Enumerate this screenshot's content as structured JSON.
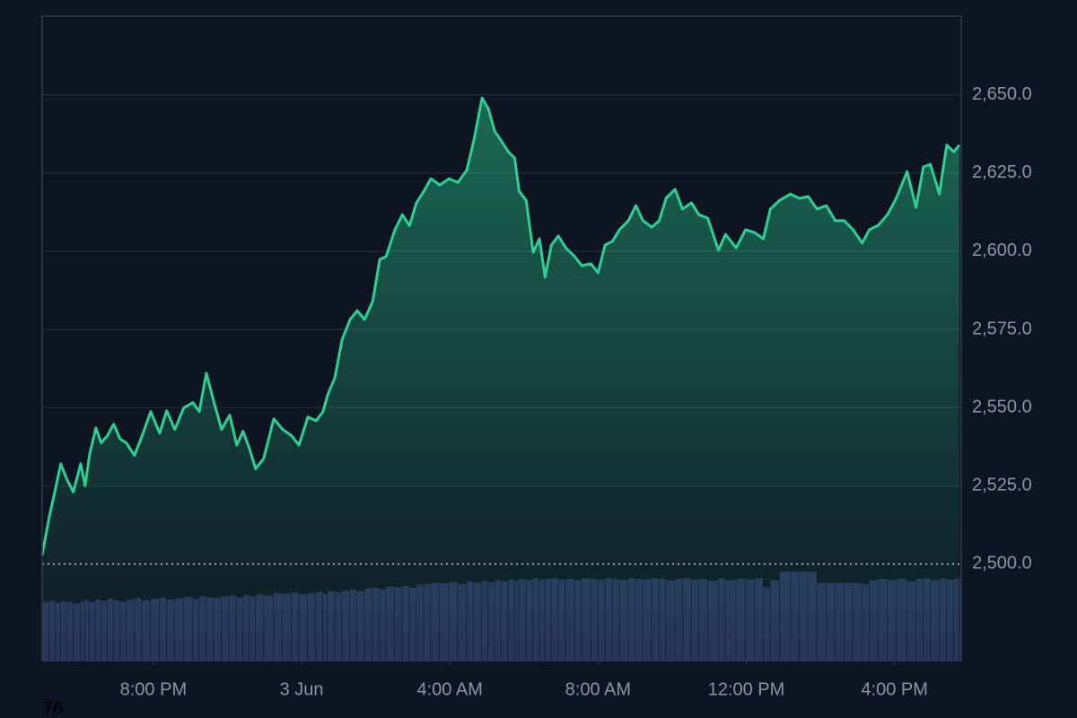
{
  "chart_data": {
    "type": "line",
    "x": [
      -7.0,
      -6.81,
      -6.64,
      -6.5,
      -6.33,
      -6.16,
      -5.96,
      -5.84,
      -5.72,
      -5.55,
      -5.41,
      -5.24,
      -5.07,
      -4.9,
      -4.73,
      -4.51,
      -4.32,
      -4.07,
      -3.83,
      -3.64,
      -3.42,
      -3.18,
      -2.93,
      -2.76,
      -2.57,
      -2.38,
      -2.16,
      -1.94,
      -1.75,
      -1.58,
      -1.41,
      -1.24,
      -1.02,
      -0.75,
      -0.51,
      -0.27,
      -0.07,
      0.17,
      0.39,
      0.58,
      0.7,
      0.9,
      1.09,
      1.31,
      1.5,
      1.7,
      1.92,
      2.11,
      2.28,
      2.52,
      2.72,
      2.91,
      3.1,
      3.3,
      3.49,
      3.73,
      3.98,
      4.22,
      4.46,
      4.65,
      4.87,
      5.04,
      5.21,
      5.38,
      5.58,
      5.75,
      5.87,
      6.06,
      6.25,
      6.42,
      6.57,
      6.74,
      6.93,
      7.13,
      7.37,
      7.56,
      7.81,
      8.0,
      8.19,
      8.39,
      8.58,
      8.82,
      9.02,
      9.21,
      9.45,
      9.65,
      9.84,
      10.08,
      10.28,
      10.52,
      10.72,
      10.96,
      11.25,
      11.44,
      11.73,
      11.98,
      12.22,
      12.46,
      12.65,
      12.9,
      13.19,
      13.43,
      13.67,
      13.91,
      14.16,
      14.4,
      14.64,
      14.88,
      15.13,
      15.32,
      15.56,
      15.81,
      16.05,
      16.34,
      16.58,
      16.78,
      16.97,
      17.21,
      17.41,
      17.6,
      17.75
    ],
    "series": [
      {
        "color": "#2bd093",
        "values": [
          2502.9,
          2515,
          2524,
          2532,
          2527,
          2523,
          2532,
          2525,
          2535,
          2543.5,
          2538.7,
          2541,
          2544.7,
          2540,
          2538.7,
          2534.7,
          2540.4,
          2548.7,
          2541.8,
          2549,
          2543,
          2549.9,
          2551.6,
          2548.7,
          2561,
          2552.4,
          2543,
          2547.6,
          2538,
          2542.4,
          2537,
          2530.4,
          2533.8,
          2546.4,
          2543,
          2541,
          2538,
          2547,
          2545.8,
          2548.7,
          2553.9,
          2559.6,
          2571.6,
          2578.2,
          2581,
          2578.2,
          2584,
          2597.4,
          2598.3,
          2606.9,
          2611.7,
          2608.2,
          2615.5,
          2619.2,
          2623.2,
          2621.2,
          2623.2,
          2622,
          2626,
          2635.5,
          2649,
          2645.6,
          2638.4,
          2635.5,
          2631.8,
          2629.8,
          2619.2,
          2616.3,
          2599.7,
          2604,
          2591.7,
          2602,
          2604.9,
          2601.1,
          2598.3,
          2595.4,
          2596,
          2593.1,
          2602,
          2603.2,
          2606.9,
          2609.8,
          2614.6,
          2609.8,
          2607.7,
          2609.8,
          2617,
          2619.8,
          2613.5,
          2615.5,
          2611.7,
          2610.6,
          2600.3,
          2605.4,
          2601.1,
          2606.9,
          2606,
          2604,
          2613.5,
          2616.3,
          2618.3,
          2616.9,
          2617.5,
          2613.5,
          2614.6,
          2609.8,
          2609.8,
          2606.9,
          2602.6,
          2606.9,
          2608.3,
          2611.7,
          2617,
          2625.5,
          2614,
          2627,
          2627.8,
          2618.3,
          2634,
          2631.8,
          2634
        ]
      },
      {
        "type": "bar",
        "axis": "y2",
        "color": "#283259",
        "values": [
          9.2,
          9.4,
          9.1,
          9.3,
          9.2,
          9.0,
          9.3,
          9.5,
          9.2,
          9.6,
          9.4,
          9.7,
          9.5,
          9.3,
          9.6,
          9.8,
          9.5,
          9.7,
          9.9,
          9.6,
          9.8,
          10.0,
          9.7,
          10.1,
          9.9,
          9.8,
          10.1,
          10.2,
          10.0,
          10.3,
          10.1,
          10.4,
          10.2,
          10.6,
          10.5,
          10.7,
          10.4,
          10.6,
          10.8,
          10.5,
          10.9,
          10.7,
          11.0,
          11.2,
          10.9,
          11.3,
          11.4,
          11.2,
          11.6,
          11.5,
          11.7,
          11.4,
          11.9,
          12.0,
          12.2,
          12.1,
          12.3,
          12.0,
          12.4,
          12.2,
          12.5,
          12.3,
          12.6,
          12.4,
          12.7,
          12.5,
          12.8,
          12.6,
          12.9,
          12.7,
          12.8,
          12.9,
          12.7,
          12.8,
          12.6,
          12.9,
          12.8,
          12.7,
          12.9,
          12.8,
          12.6,
          12.9,
          12.8,
          12.7,
          12.9,
          12.8,
          12.6,
          12.8,
          12.9,
          12.7,
          12.8,
          12.5,
          12.9,
          12.6,
          12.8,
          12.7,
          12.9,
          11.5,
          12.6,
          13.9,
          13.9,
          13.9,
          13.9,
          12.2,
          12.2,
          12.2,
          12.2,
          12.2,
          12.0,
          12.6,
          12.8,
          12.6,
          12.8,
          12.4,
          12.8,
          12.9,
          12.6,
          12.8,
          12.7,
          12.8,
          12.9
        ]
      }
    ],
    "xlim": [
      -7.0,
      17.8
    ],
    "xticks": [
      {
        "value": -4,
        "label": "8:00 PM"
      },
      {
        "value": 0,
        "label": "3 Jun"
      },
      {
        "value": 4,
        "label": "4:00 AM"
      },
      {
        "value": 8,
        "label": "8:00 AM"
      },
      {
        "value": 12,
        "label": "12:00 PM"
      },
      {
        "value": 16,
        "label": "4:00 PM"
      }
    ],
    "ylim": [
      2468.8,
      2675.2
    ],
    "yticks": [
      {
        "value": 2500,
        "label": "2,500.0"
      },
      {
        "value": 2525,
        "label": "2,525.0"
      },
      {
        "value": 2550,
        "label": "2,550.0"
      },
      {
        "value": 2575,
        "label": "2,575.0"
      },
      {
        "value": 2600,
        "label": "2,600.0"
      },
      {
        "value": 2625,
        "label": "2,625.0"
      },
      {
        "value": 2650,
        "label": "2,650.0"
      }
    ],
    "y2lim": [
      0,
      100
    ],
    "grid": true,
    "reference_line": 2500,
    "annotation": "76"
  }
}
